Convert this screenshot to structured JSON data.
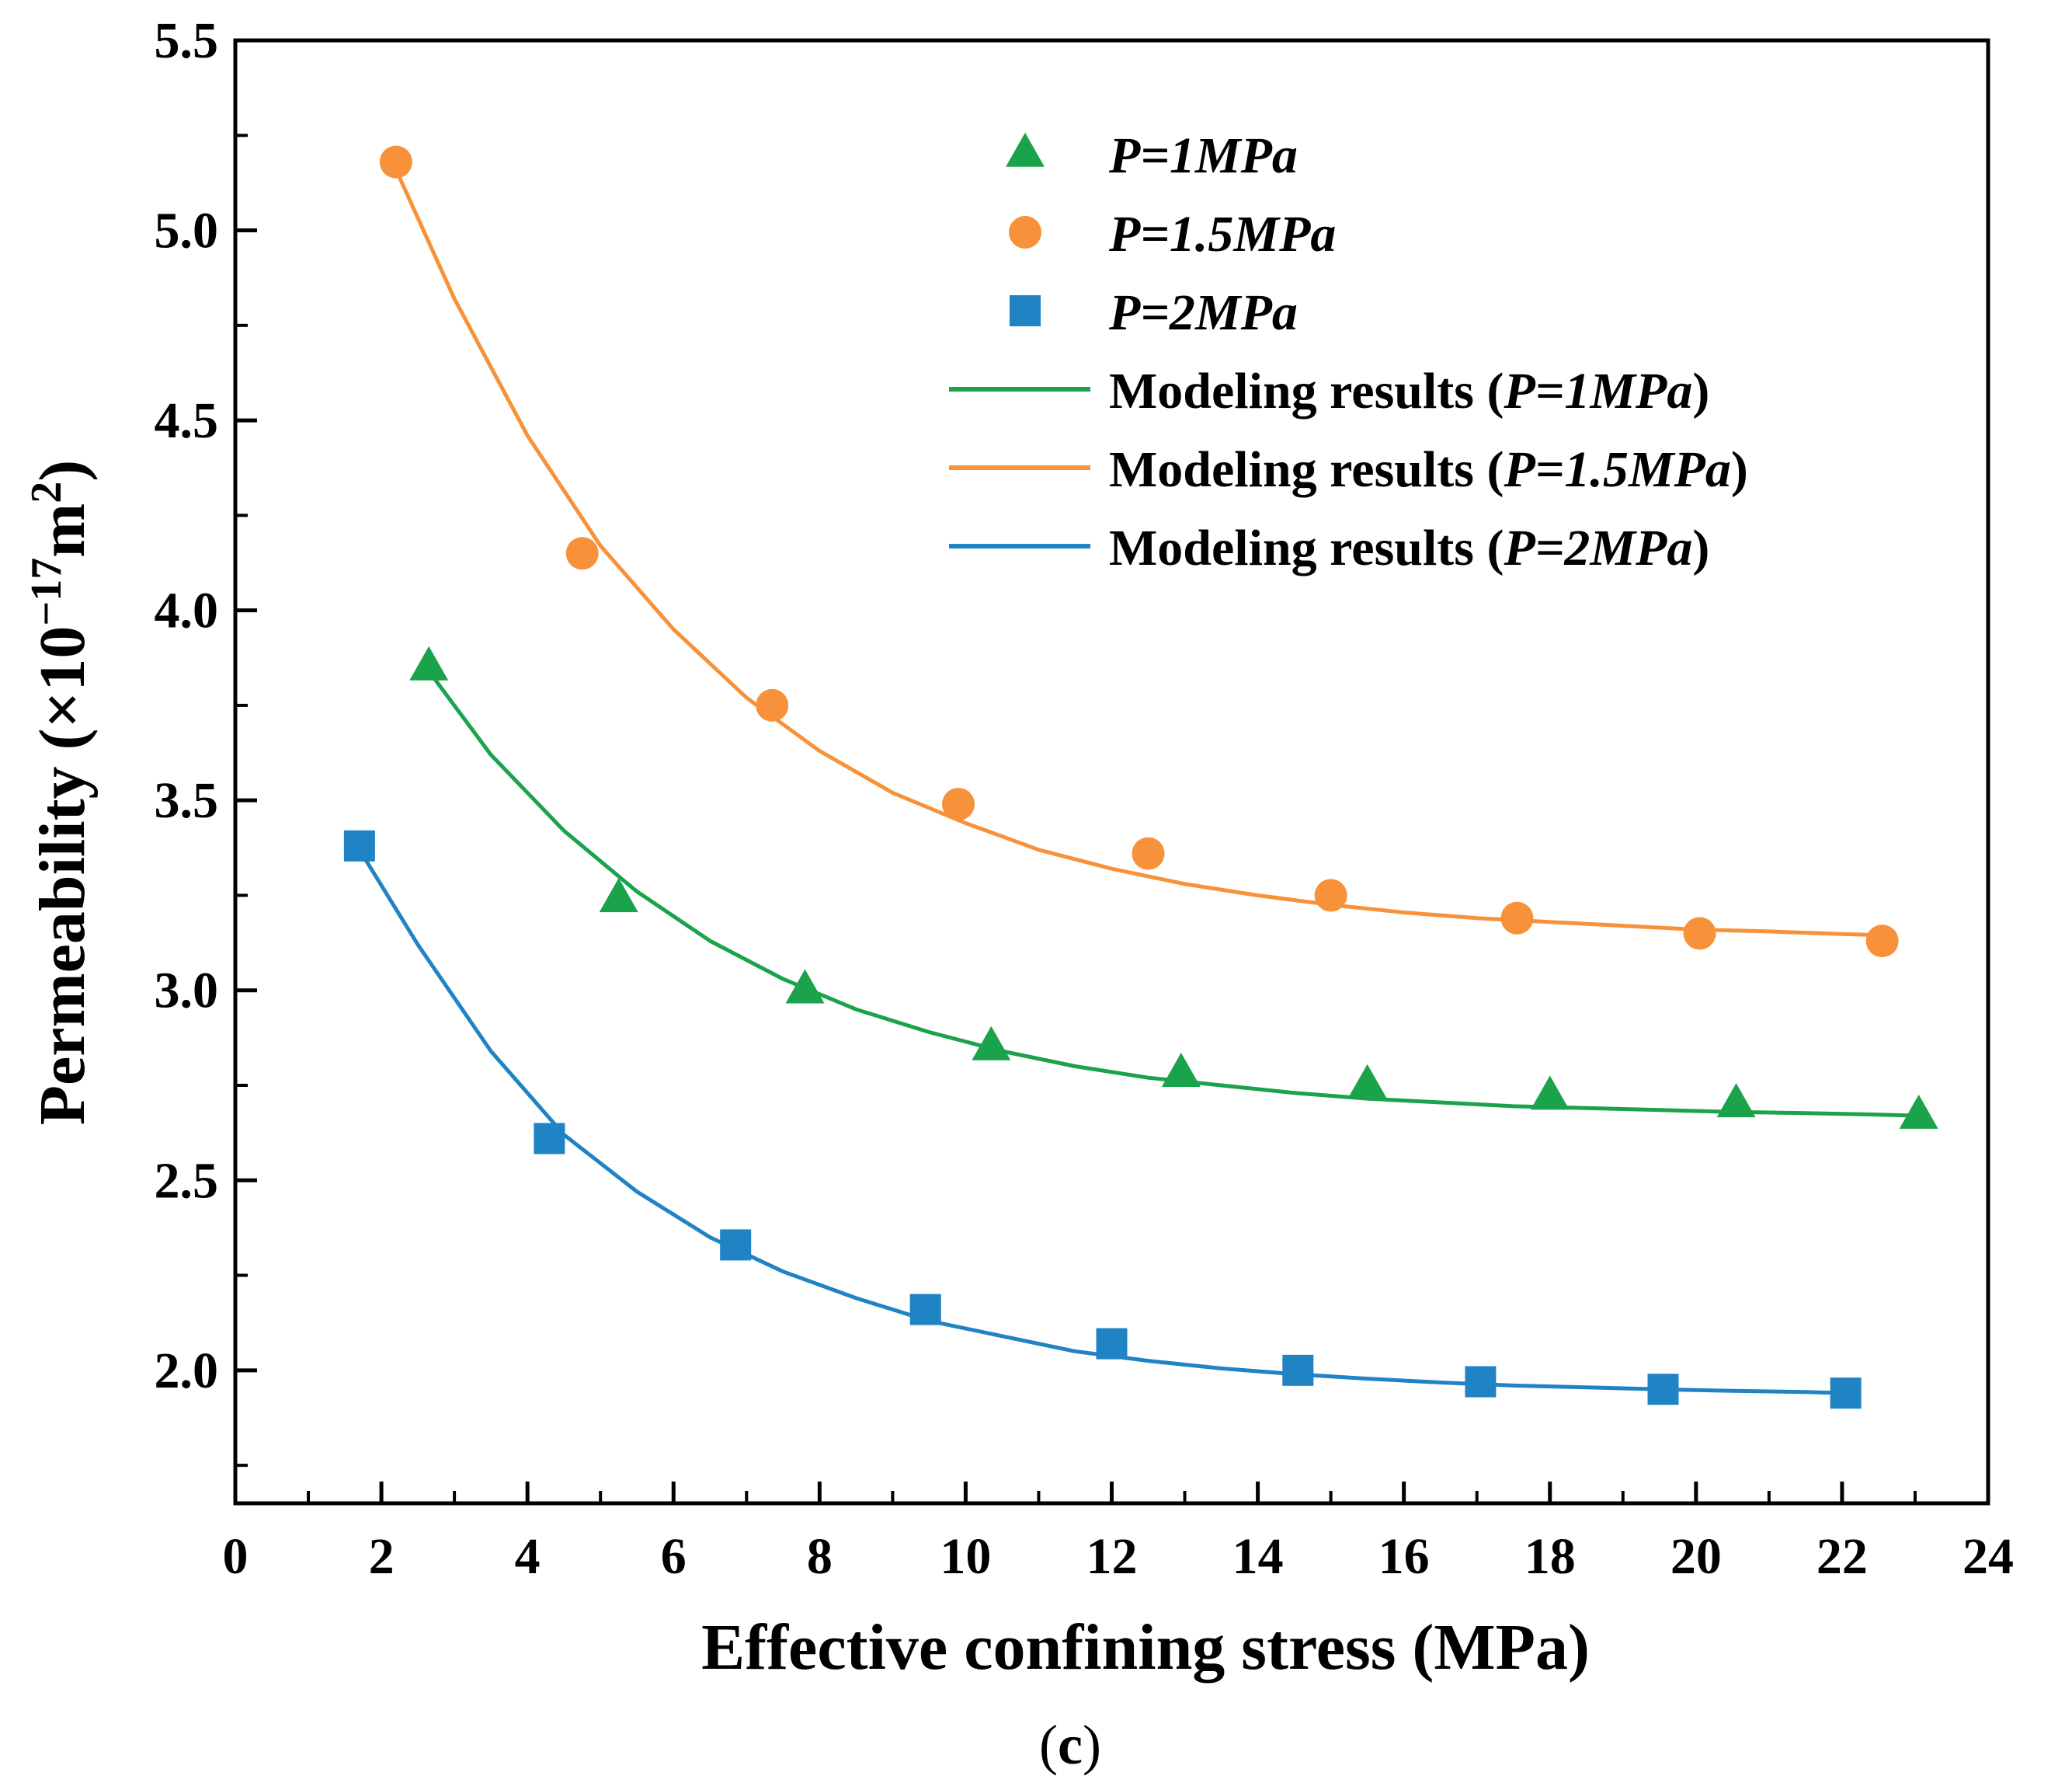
{
  "chart_data": {
    "type": "scatter",
    "title": "",
    "xlabel": "Effective confining stress (MPa)",
    "ylabel": {
      "prefix": "Permeability (×10",
      "exponent": "−17",
      "unit": "m",
      "unit_exponent": "2",
      "suffix": ")"
    },
    "xlim": [
      0,
      24
    ],
    "ylim": [
      1.65,
      5.5
    ],
    "x_ticks": [
      0,
      2,
      4,
      6,
      8,
      10,
      12,
      14,
      16,
      18,
      20,
      22,
      24
    ],
    "x_tick_labels": [
      "0",
      "2",
      "4",
      "6",
      "8",
      "10",
      "12",
      "14",
      "16",
      "18",
      "20",
      "22",
      "24"
    ],
    "y_ticks": [
      2.0,
      2.5,
      3.0,
      3.5,
      4.0,
      4.5,
      5.0,
      5.5
    ],
    "y_tick_labels": [
      "2.0",
      "2.5",
      "3.0",
      "3.5",
      "4.0",
      "4.5",
      "5.0",
      "5.5"
    ],
    "grid": false,
    "legend_position": "top-right",
    "series": [
      {
        "name": "P=1MPa",
        "kind": "markers",
        "marker": "triangle",
        "color": "#1aa34a",
        "x": [
          2.65,
          5.25,
          7.8,
          10.35,
          12.95,
          15.5,
          18.0,
          20.55,
          23.05
        ],
        "y": [
          3.85,
          3.24,
          3.0,
          2.85,
          2.78,
          2.75,
          2.72,
          2.7,
          2.67
        ]
      },
      {
        "name": "P=1.5MPa",
        "kind": "markers",
        "marker": "circle",
        "color": "#f7923a",
        "x": [
          2.2,
          4.75,
          7.35,
          9.9,
          12.5,
          15.0,
          17.55,
          20.05,
          22.55
        ],
        "y": [
          5.18,
          4.15,
          3.75,
          3.49,
          3.36,
          3.25,
          3.19,
          3.15,
          3.13
        ]
      },
      {
        "name": "P=2MPa",
        "kind": "markers",
        "marker": "square",
        "color": "#1f83c4",
        "x": [
          1.7,
          4.3,
          6.85,
          9.45,
          12.0,
          14.55,
          17.05,
          19.55,
          22.05
        ],
        "y": [
          3.38,
          2.61,
          2.33,
          2.16,
          2.07,
          2.0,
          1.97,
          1.95,
          1.94
        ]
      },
      {
        "name": "Modeling results (P=1MPa)",
        "kind": "line",
        "color": "#1aa34a",
        "x": [
          2.65,
          3.5,
          4.5,
          5.5,
          6.5,
          7.5,
          8.5,
          9.5,
          10.5,
          11.5,
          12.5,
          13.5,
          14.5,
          15.5,
          16.5,
          17.5,
          18.5,
          19.5,
          20.5,
          21.5,
          22.5,
          23.05
        ],
        "y": [
          3.84,
          3.62,
          3.42,
          3.26,
          3.13,
          3.03,
          2.95,
          2.89,
          2.84,
          2.8,
          2.77,
          2.75,
          2.73,
          2.715,
          2.705,
          2.695,
          2.69,
          2.685,
          2.68,
          2.677,
          2.673,
          2.67
        ]
      },
      {
        "name": "Modeling results (P=1.5MPa)",
        "kind": "line",
        "color": "#f7923a",
        "x": [
          2.2,
          3.0,
          4.0,
          5.0,
          6.0,
          7.0,
          8.0,
          9.0,
          10.0,
          11.0,
          12.0,
          13.0,
          14.0,
          15.0,
          16.0,
          17.0,
          18.0,
          19.0,
          20.0,
          21.0,
          22.0,
          22.55
        ],
        "y": [
          5.16,
          4.82,
          4.46,
          4.17,
          3.95,
          3.77,
          3.63,
          3.52,
          3.44,
          3.37,
          3.32,
          3.28,
          3.25,
          3.225,
          3.205,
          3.19,
          3.18,
          3.17,
          3.16,
          3.155,
          3.148,
          3.145
        ]
      },
      {
        "name": "Modeling results (P=2MPa)",
        "kind": "line",
        "color": "#1f83c4",
        "x": [
          1.7,
          2.5,
          3.5,
          4.5,
          5.5,
          6.5,
          7.5,
          8.5,
          9.5,
          10.5,
          11.5,
          12.5,
          13.5,
          14.5,
          15.5,
          16.5,
          17.5,
          18.5,
          19.5,
          20.5,
          21.5,
          22.05
        ],
        "y": [
          3.37,
          3.12,
          2.84,
          2.62,
          2.47,
          2.35,
          2.26,
          2.19,
          2.13,
          2.09,
          2.05,
          2.025,
          2.005,
          1.99,
          1.978,
          1.968,
          1.96,
          1.955,
          1.95,
          1.946,
          1.943,
          1.94
        ]
      }
    ],
    "legend": [
      {
        "marker": "triangle",
        "color": "#1aa34a",
        "prefix": "",
        "italic": "P=1MPa",
        "suffix": ""
      },
      {
        "marker": "circle",
        "color": "#f7923a",
        "prefix": "",
        "italic": "P=1.5MPa",
        "suffix": ""
      },
      {
        "marker": "square",
        "color": "#1f83c4",
        "prefix": "",
        "italic": "P=2MPa",
        "suffix": ""
      },
      {
        "marker": "line",
        "color": "#1aa34a",
        "prefix": "Modeling results (",
        "italic": "P=1MPa",
        "suffix": ")"
      },
      {
        "marker": "line",
        "color": "#f7923a",
        "prefix": "Modeling results (",
        "italic": "P=1.5MPa",
        "suffix": ")"
      },
      {
        "marker": "line",
        "color": "#1f83c4",
        "prefix": "Modeling results (",
        "italic": "P=2MPa",
        "suffix": ")"
      }
    ],
    "caption": {
      "open": "(",
      "letter": "c",
      "close": ")"
    }
  }
}
